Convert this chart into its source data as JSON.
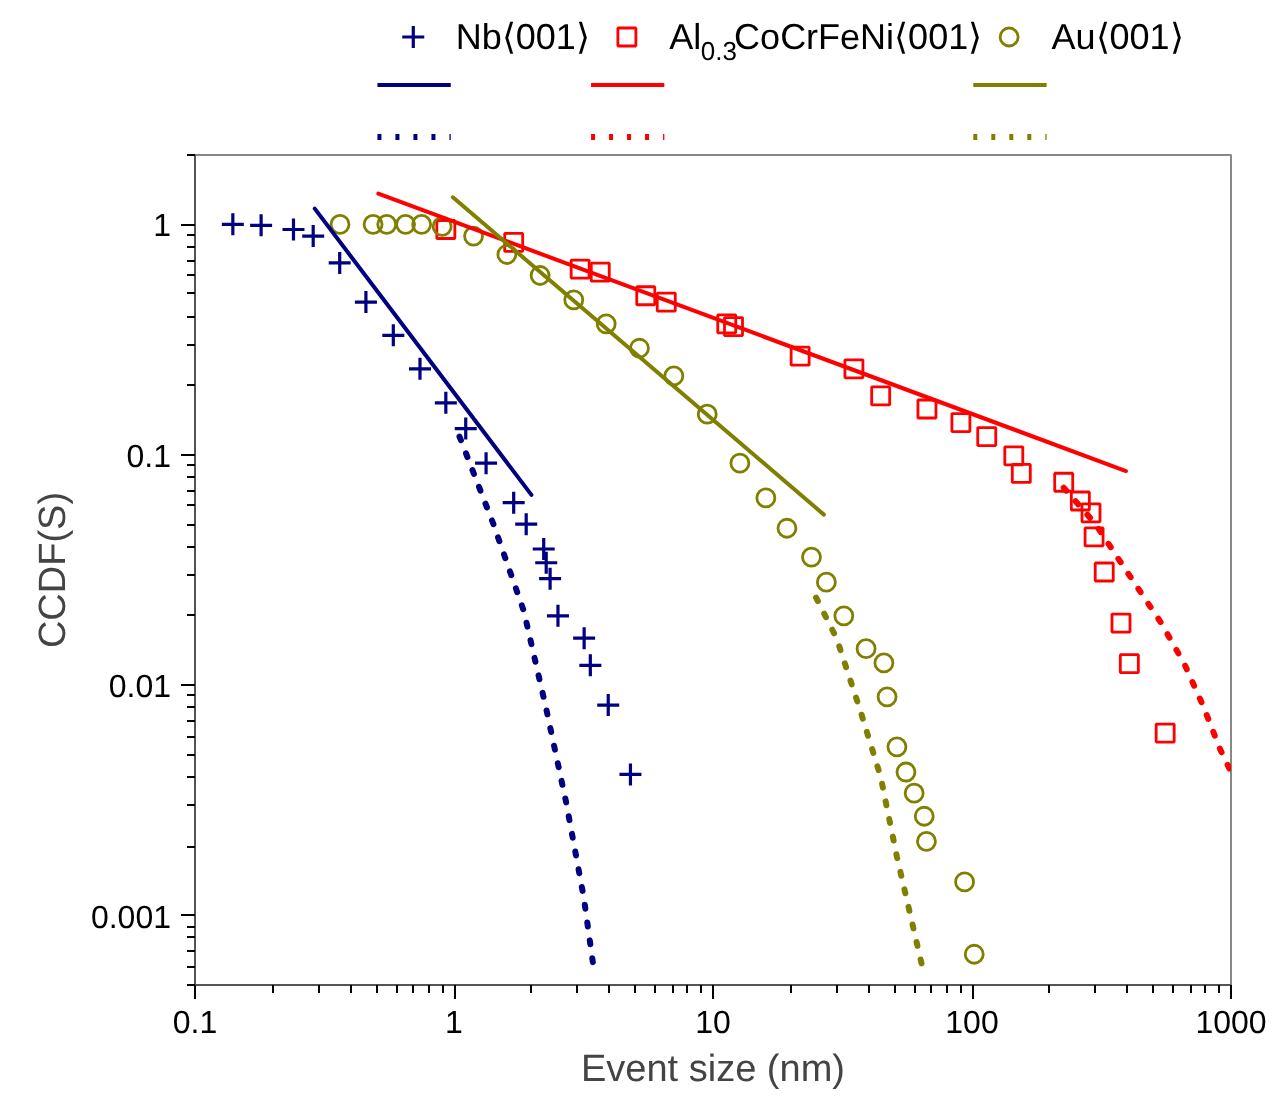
{
  "chart_data": {
    "type": "scatter",
    "xlabel": "Event size (nm)",
    "ylabel": "CCDF(S)",
    "log": "xy",
    "grid": false,
    "legend": "top",
    "xlim": [
      0.1,
      1000
    ],
    "ylim": [
      0.0005,
      2
    ],
    "xticks": [
      0.1,
      1,
      10,
      100,
      1000
    ],
    "yticks": [
      0.001,
      0.01,
      0.1,
      1
    ],
    "series": [
      {
        "name": "Nb⟨001⟩",
        "color": "#000080",
        "marker": "cross",
        "x": [
          0.14,
          0.18,
          0.24,
          0.286,
          0.362,
          0.457,
          0.583,
          0.739,
          0.93,
          1.11,
          1.33,
          1.7,
          1.9,
          2.22,
          2.27,
          2.35,
          2.52,
          3.18,
          3.36,
          3.94,
          4.8
        ],
        "values": [
          1,
          0.99,
          0.95,
          0.89,
          0.68,
          0.46,
          0.33,
          0.236,
          0.168,
          0.13,
          0.092,
          0.062,
          0.05,
          0.039,
          0.034,
          0.029,
          0.02,
          0.016,
          0.0122,
          0.0082,
          0.0041
        ]
      },
      {
        "name": "Al$_{0.3}$CoCrFeNi⟨001⟩",
        "color": "#ff0000",
        "marker": "square",
        "x": [
          0.93,
          1.7,
          3.07,
          3.67,
          5.5,
          6.6,
          11.3,
          12,
          21.7,
          35,
          44.4,
          67,
          90.6,
          114,
          145,
          155,
          226,
          262,
          288,
          296,
          324,
          376,
          405,
          557
        ],
        "values": [
          0.95,
          0.835,
          0.64,
          0.62,
          0.49,
          0.46,
          0.37,
          0.36,
          0.268,
          0.236,
          0.18,
          0.158,
          0.138,
          0.12,
          0.099,
          0.083,
          0.076,
          0.063,
          0.056,
          0.044,
          0.031,
          0.0186,
          0.0124,
          0.0062
        ]
      },
      {
        "name": "Au⟨001⟩",
        "color": "#808000",
        "marker": "circle",
        "x": [
          0.363,
          0.487,
          0.55,
          0.65,
          0.75,
          0.9,
          1.19,
          1.6,
          2.15,
          2.9,
          3.87,
          5.2,
          7.06,
          9.5,
          12.7,
          16,
          19.3,
          24,
          27.4,
          32,
          39,
          45.7,
          47,
          51.3,
          55.6,
          59.8,
          65.4,
          66.7,
          93.6,
          102
        ],
        "values": [
          1,
          1,
          1,
          1,
          1,
          0.98,
          0.89,
          0.74,
          0.6,
          0.47,
          0.37,
          0.29,
          0.22,
          0.15,
          0.092,
          0.065,
          0.048,
          0.036,
          0.028,
          0.02,
          0.0144,
          0.0125,
          0.0089,
          0.0054,
          0.0042,
          0.0034,
          0.0027,
          0.0021,
          0.0014,
          0.00068
        ]
      },
      {
        "type": "line",
        "color": "#000080",
        "line_style": "solid",
        "x": [
          0.29,
          1.99
        ],
        "values": [
          1.17,
          0.067
        ]
      },
      {
        "type": "line",
        "color": "#ff0000",
        "line_style": "solid",
        "x": [
          0.51,
          393
        ],
        "values": [
          1.36,
          0.085
        ]
      },
      {
        "type": "line",
        "color": "#808000",
        "line_style": "solid",
        "x": [
          0.99,
          26.8
        ],
        "values": [
          1.31,
          0.055
        ]
      },
      {
        "type": "line",
        "color": "#000080",
        "line_style": "dotted",
        "x": [
          1.05,
          1.42,
          1.86,
          2.27,
          2.71,
          3.17,
          3.47
        ],
        "values": [
          0.12,
          0.05,
          0.021,
          0.0079,
          0.0031,
          0.0012,
          0.00058
        ]
      },
      {
        "type": "line",
        "color": "#ff0000",
        "line_style": "dotted",
        "x": [
          226,
          300,
          376,
          538,
          660,
          782,
          906,
          1000
        ],
        "values": [
          0.072,
          0.05,
          0.034,
          0.0186,
          0.0124,
          0.0081,
          0.0053,
          0.0042
        ]
      },
      {
        "type": "line",
        "color": "#808000",
        "line_style": "dotted",
        "x": [
          25,
          30,
          37,
          44.4,
          51.3,
          64.5
        ],
        "values": [
          0.024,
          0.016,
          0.0078,
          0.004,
          0.0018,
          0.00059
        ]
      }
    ]
  }
}
